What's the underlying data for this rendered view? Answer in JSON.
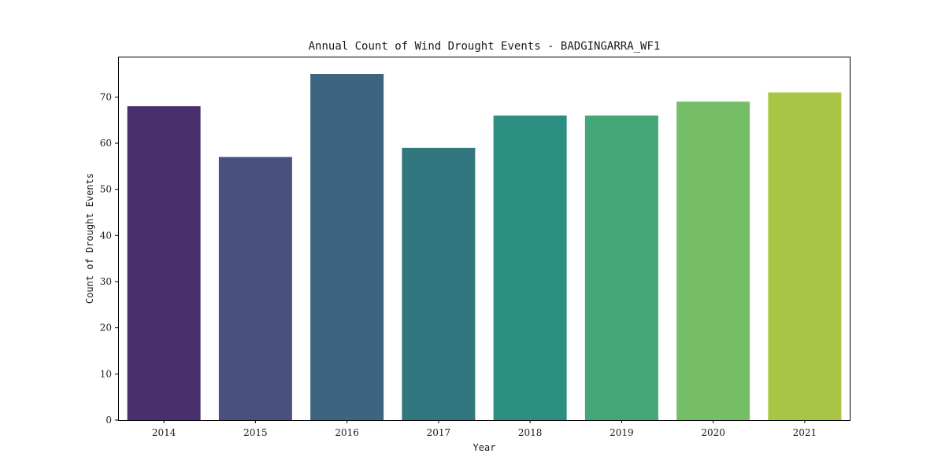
{
  "chart_data": {
    "type": "bar",
    "title": "Annual Count of Wind Drought Events - BADGINGARRA_WF1",
    "xlabel": "Year",
    "ylabel": "Count of Drought Events",
    "categories": [
      "2014",
      "2015",
      "2016",
      "2017",
      "2018",
      "2019",
      "2020",
      "2021"
    ],
    "values": [
      68,
      57,
      75,
      59,
      66,
      66,
      69,
      71
    ],
    "colors": [
      "#482f6d",
      "#47507e",
      "#3e6580",
      "#32777f",
      "#2c8f80",
      "#45a777",
      "#75bd66",
      "#a8c545"
    ],
    "ylim": [
      0,
      78.75
    ],
    "yticks": [
      0,
      10,
      20,
      30,
      40,
      50,
      60,
      70
    ],
    "grid": false,
    "legend": "none"
  }
}
